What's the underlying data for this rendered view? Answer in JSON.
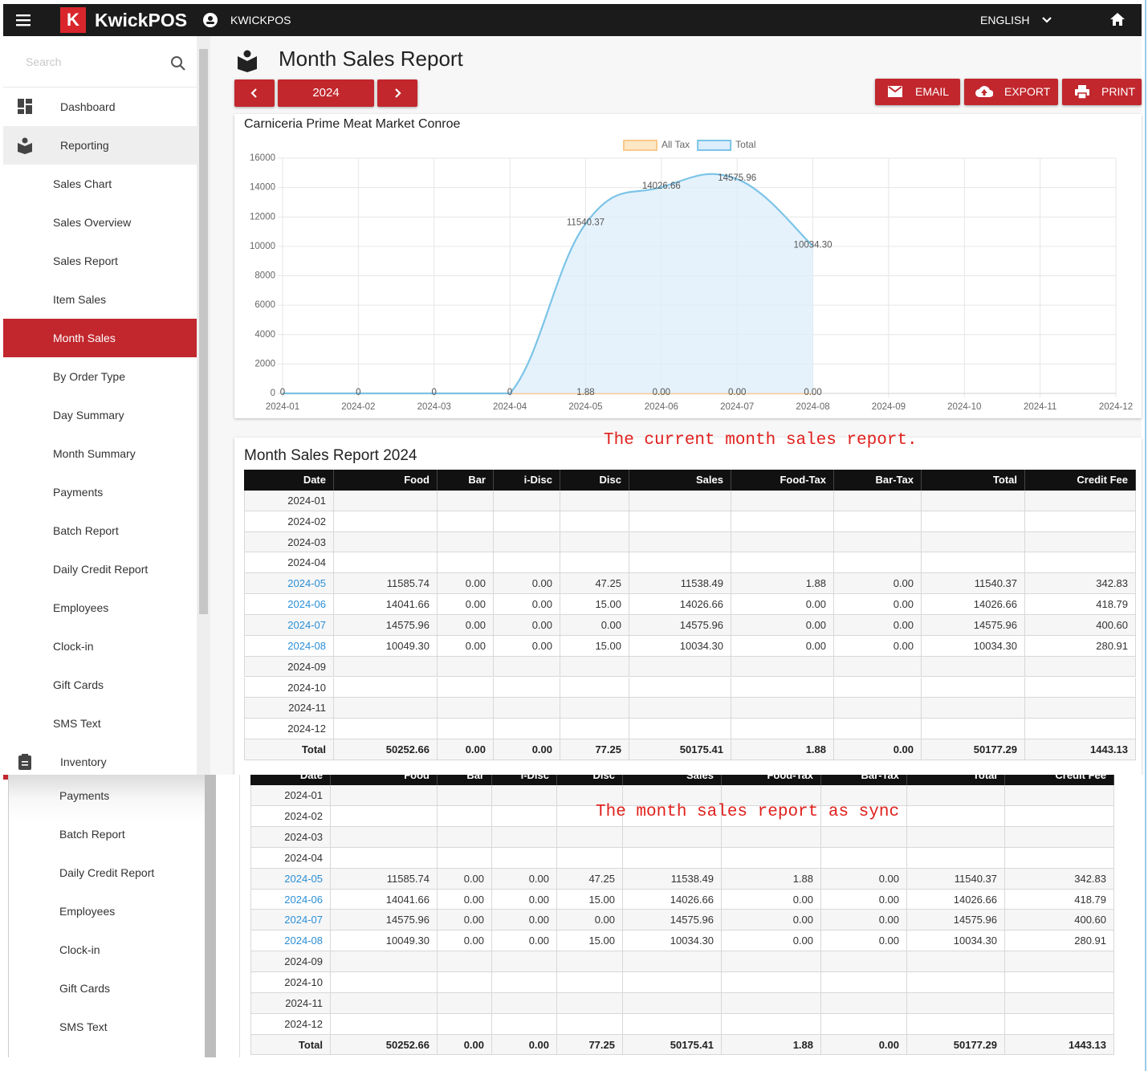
{
  "header": {
    "logo_mark": "K",
    "brand": "KwickPOS",
    "account": "KWICKPOS",
    "language": "ENGLISH"
  },
  "sidebar": {
    "search_placeholder": "Search",
    "sections": [
      {
        "label": "Dashboard"
      },
      {
        "label": "Reporting",
        "selected": 4,
        "items": [
          "Sales Chart",
          "Sales Overview",
          "Sales Report",
          "Item Sales",
          "Month Sales",
          "By Order Type",
          "Day Summary",
          "Month Summary",
          "Payments",
          "Batch Report",
          "Daily Credit Report",
          "Employees",
          "Clock-in",
          "Gift Cards",
          "SMS Text"
        ]
      },
      {
        "label": "Inventory"
      }
    ]
  },
  "page": {
    "title": "Month Sales Report",
    "year": "2024",
    "buttons": [
      "EMAIL",
      "EXPORT",
      "PRINT"
    ]
  },
  "chart_data": {
    "type": "line",
    "title": "Carniceria Prime Meat Market Conroe",
    "categories": [
      "2024-01",
      "2024-02",
      "2024-03",
      "2024-04",
      "2024-05",
      "2024-06",
      "2024-07",
      "2024-08",
      "2024-09",
      "2024-10",
      "2024-11",
      "2024-12"
    ],
    "series": [
      {
        "name": "All Tax",
        "color": "#f9c98a",
        "fill": "#fde7c4",
        "values": [
          0,
          0,
          0,
          0,
          1.88,
          0,
          0,
          0,
          null,
          null,
          null,
          null
        ],
        "value_labels": [
          null,
          null,
          null,
          null,
          "1.88",
          "0.00",
          "0.00",
          "0.00",
          null,
          null,
          null,
          null
        ]
      },
      {
        "name": "Total",
        "color": "#7cc4e8",
        "fill": "#dcedfb",
        "values": [
          0,
          0,
          0,
          0,
          11540.37,
          14026.66,
          14575.96,
          10034.3,
          null,
          null,
          null,
          null
        ],
        "value_labels": [
          "0",
          "0",
          "0",
          "0",
          "11540.37",
          "14026.66",
          "14575.96",
          "10034.30",
          null,
          null,
          null,
          null
        ]
      }
    ],
    "ylim": [
      0,
      16000
    ],
    "yticks": [
      0,
      2000,
      4000,
      6000,
      8000,
      10000,
      12000,
      14000,
      16000
    ],
    "grid": true,
    "legend": "top"
  },
  "annotations": [
    "The current month sales report.",
    "The month sales report as sync"
  ],
  "report": {
    "title": "Month Sales Report 2024",
    "columns": [
      "Date",
      "Food",
      "Bar",
      "i-Disc",
      "Disc",
      "Sales",
      "Food-Tax",
      "Bar-Tax",
      "Total",
      "Credit Fee"
    ],
    "rows": [
      [
        "2024-01",
        null,
        null,
        null,
        null,
        null,
        null,
        null,
        null,
        null
      ],
      [
        "2024-02",
        null,
        null,
        null,
        null,
        null,
        null,
        null,
        null,
        null
      ],
      [
        "2024-03",
        null,
        null,
        null,
        null,
        null,
        null,
        null,
        null,
        null
      ],
      [
        "2024-04",
        null,
        null,
        null,
        null,
        null,
        null,
        null,
        null,
        null
      ],
      [
        "2024-05",
        "11585.74",
        "0.00",
        "0.00",
        "47.25",
        "11538.49",
        "1.88",
        "0.00",
        "11540.37",
        "342.83"
      ],
      [
        "2024-06",
        "14041.66",
        "0.00",
        "0.00",
        "15.00",
        "14026.66",
        "0.00",
        "0.00",
        "14026.66",
        "418.79"
      ],
      [
        "2024-07",
        "14575.96",
        "0.00",
        "0.00",
        "0.00",
        "14575.96",
        "0.00",
        "0.00",
        "14575.96",
        "400.60"
      ],
      [
        "2024-08",
        "10049.30",
        "0.00",
        "0.00",
        "15.00",
        "10034.30",
        "0.00",
        "0.00",
        "10034.30",
        "280.91"
      ],
      [
        "2024-09",
        null,
        null,
        null,
        null,
        null,
        null,
        null,
        null,
        null
      ],
      [
        "2024-10",
        null,
        null,
        null,
        null,
        null,
        null,
        null,
        null,
        null
      ],
      [
        "2024-11",
        null,
        null,
        null,
        null,
        null,
        null,
        null,
        null,
        null
      ],
      [
        "2024-12",
        null,
        null,
        null,
        null,
        null,
        null,
        null,
        null,
        null
      ]
    ],
    "total": [
      "Total",
      "50252.66",
      "0.00",
      "0.00",
      "77.25",
      "50175.41",
      "1.88",
      "0.00",
      "50177.29",
      "1443.13"
    ]
  },
  "sync": {
    "sidebar_items": [
      "Payments",
      "Batch Report",
      "Daily Credit Report",
      "Employees",
      "Clock-in",
      "Gift Cards",
      "SMS Text"
    ],
    "columns": [
      "Date",
      "Food",
      "Bar",
      "i-Disc",
      "Disc",
      "Sales",
      "Food-Tax",
      "Bar-Tax",
      "Total",
      "Credit Fee"
    ],
    "rows": [
      [
        "2024-01",
        null,
        null,
        null,
        null,
        null,
        null,
        null,
        null,
        null
      ],
      [
        "2024-02",
        null,
        null,
        null,
        null,
        null,
        null,
        null,
        null,
        null
      ],
      [
        "2024-03",
        null,
        null,
        null,
        null,
        null,
        null,
        null,
        null,
        null
      ],
      [
        "2024-04",
        null,
        null,
        null,
        null,
        null,
        null,
        null,
        null,
        null
      ],
      [
        "2024-05",
        "11585.74",
        "0.00",
        "0.00",
        "47.25",
        "11538.49",
        "1.88",
        "0.00",
        "11540.37",
        "342.83"
      ],
      [
        "2024-06",
        "14041.66",
        "0.00",
        "0.00",
        "15.00",
        "14026.66",
        "0.00",
        "0.00",
        "14026.66",
        "418.79"
      ],
      [
        "2024-07",
        "14575.96",
        "0.00",
        "0.00",
        "0.00",
        "14575.96",
        "0.00",
        "0.00",
        "14575.96",
        "400.60"
      ],
      [
        "2024-08",
        "10049.30",
        "0.00",
        "0.00",
        "15.00",
        "10034.30",
        "0.00",
        "0.00",
        "10034.30",
        "280.91"
      ],
      [
        "2024-09",
        null,
        null,
        null,
        null,
        null,
        null,
        null,
        null,
        null
      ],
      [
        "2024-10",
        null,
        null,
        null,
        null,
        null,
        null,
        null,
        null,
        null
      ],
      [
        "2024-11",
        null,
        null,
        null,
        null,
        null,
        null,
        null,
        null,
        null
      ],
      [
        "2024-12",
        null,
        null,
        null,
        null,
        null,
        null,
        null,
        null,
        null
      ]
    ],
    "total": [
      "Total",
      "50252.66",
      "0.00",
      "0.00",
      "77.25",
      "50175.41",
      "1.88",
      "0.00",
      "50177.29",
      "1443.13"
    ]
  }
}
